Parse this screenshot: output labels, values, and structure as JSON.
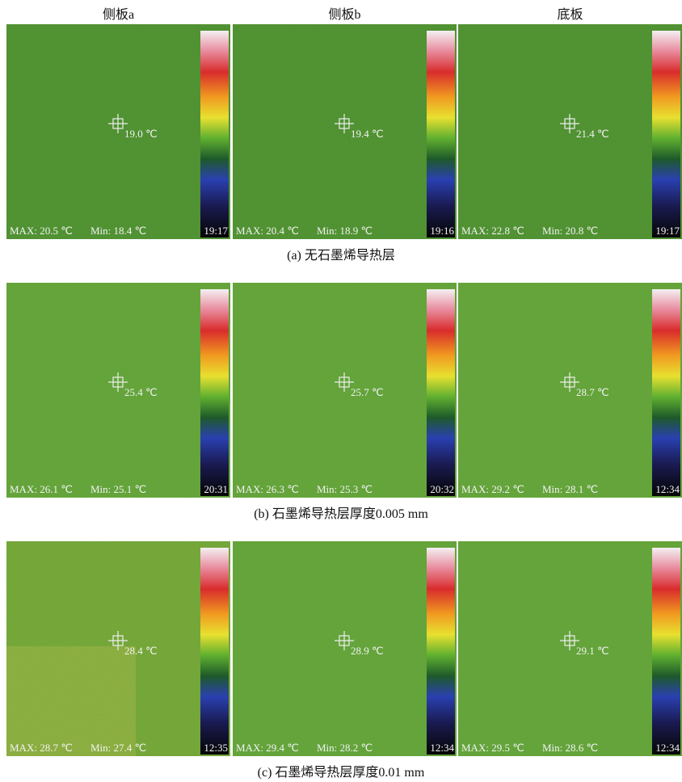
{
  "columns": [
    "侧板a",
    "侧板b",
    "底板"
  ],
  "rows": [
    {
      "caption": "(a)  无石墨烯导热层",
      "panels": [
        {
          "center": "19.0 ℃",
          "max": "MAX: 20.5 ℃",
          "min": "Min: 18.4 ℃",
          "time": "19:17"
        },
        {
          "center": "19.4 ℃",
          "max": "MAX: 20.4 ℃",
          "min": "Min: 18.9 ℃",
          "time": "19:16"
        },
        {
          "center": "21.4 ℃",
          "max": "MAX: 22.8 ℃",
          "min": "Min: 20.8 ℃",
          "time": "19:17"
        }
      ]
    },
    {
      "caption": "(b)  石墨烯导热层厚度0.005 mm",
      "panels": [
        {
          "center": "25.4 ℃",
          "max": "MAX: 26.1 ℃",
          "min": "Min: 25.1 ℃",
          "time": "20:31"
        },
        {
          "center": "25.7 ℃",
          "max": "MAX: 26.3 ℃",
          "min": "Min: 25.3 ℃",
          "time": "20:32"
        },
        {
          "center": "28.7 ℃",
          "max": "MAX: 29.2 ℃",
          "min": "Min: 28.1 ℃",
          "time": "12:34"
        }
      ]
    },
    {
      "caption": "(c)  石墨烯导热层厚度0.01 mm",
      "panels": [
        {
          "center": "28.4 ℃",
          "max": "MAX: 28.7 ℃",
          "min": "Min: 27.4 ℃",
          "time": "12:35"
        },
        {
          "center": "28.9 ℃",
          "max": "MAX: 29.4 ℃",
          "min": "Min: 28.2 ℃",
          "time": "12:34"
        },
        {
          "center": "29.1 ℃",
          "max": "MAX: 29.5 ℃",
          "min": "Min: 28.6 ℃",
          "time": "12:34"
        }
      ]
    }
  ]
}
